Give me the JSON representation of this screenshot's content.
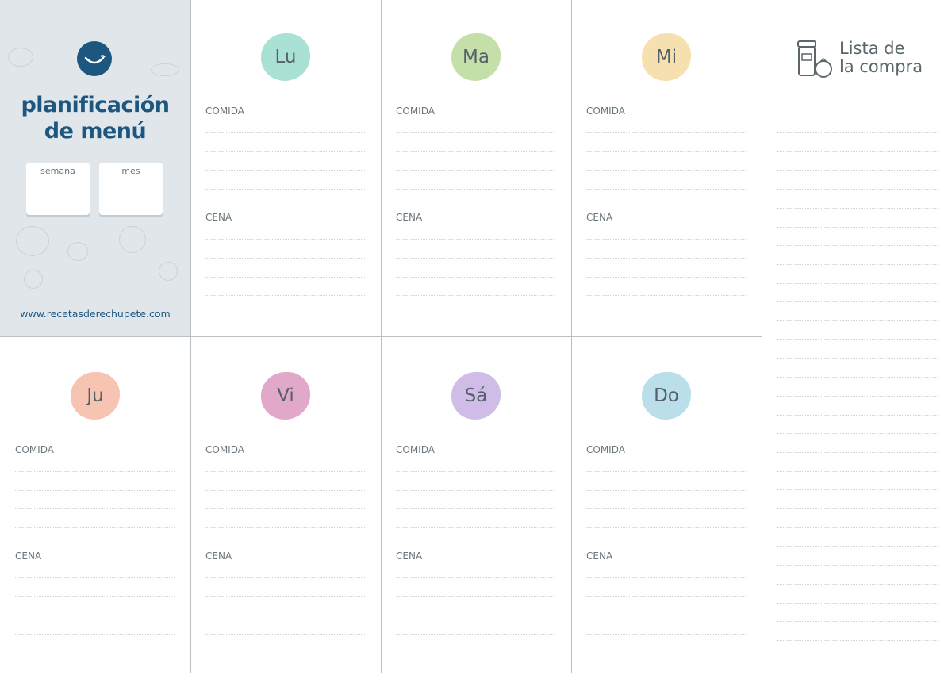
{
  "brand": {
    "title_line1": "planificación",
    "title_line2": "de menú",
    "week_label": "semana",
    "month_label": "mes",
    "url": "www.recetasderechupete.com"
  },
  "meal_labels": {
    "lunch": "COMIDA",
    "dinner": "CENA"
  },
  "days": [
    {
      "abbr": "Lu",
      "color": "#a9e1d5"
    },
    {
      "abbr": "Ma",
      "color": "#c5dfa9"
    },
    {
      "abbr": "Mi",
      "color": "#f6e0b0"
    },
    {
      "abbr": "Ju",
      "color": "#f7c4b1"
    },
    {
      "abbr": "Vi",
      "color": "#e1a8c9"
    },
    {
      "abbr": "Sá",
      "color": "#cfbde7"
    },
    {
      "abbr": "Do",
      "color": "#bbdeeb"
    }
  ],
  "shopping_list": {
    "title_line1": "Lista de",
    "title_line2": "la compra",
    "icon": "jar-and-tomato-icon"
  },
  "colors": {
    "brand_blue": "#1d5780",
    "panel_bg": "#e1e6eb"
  }
}
